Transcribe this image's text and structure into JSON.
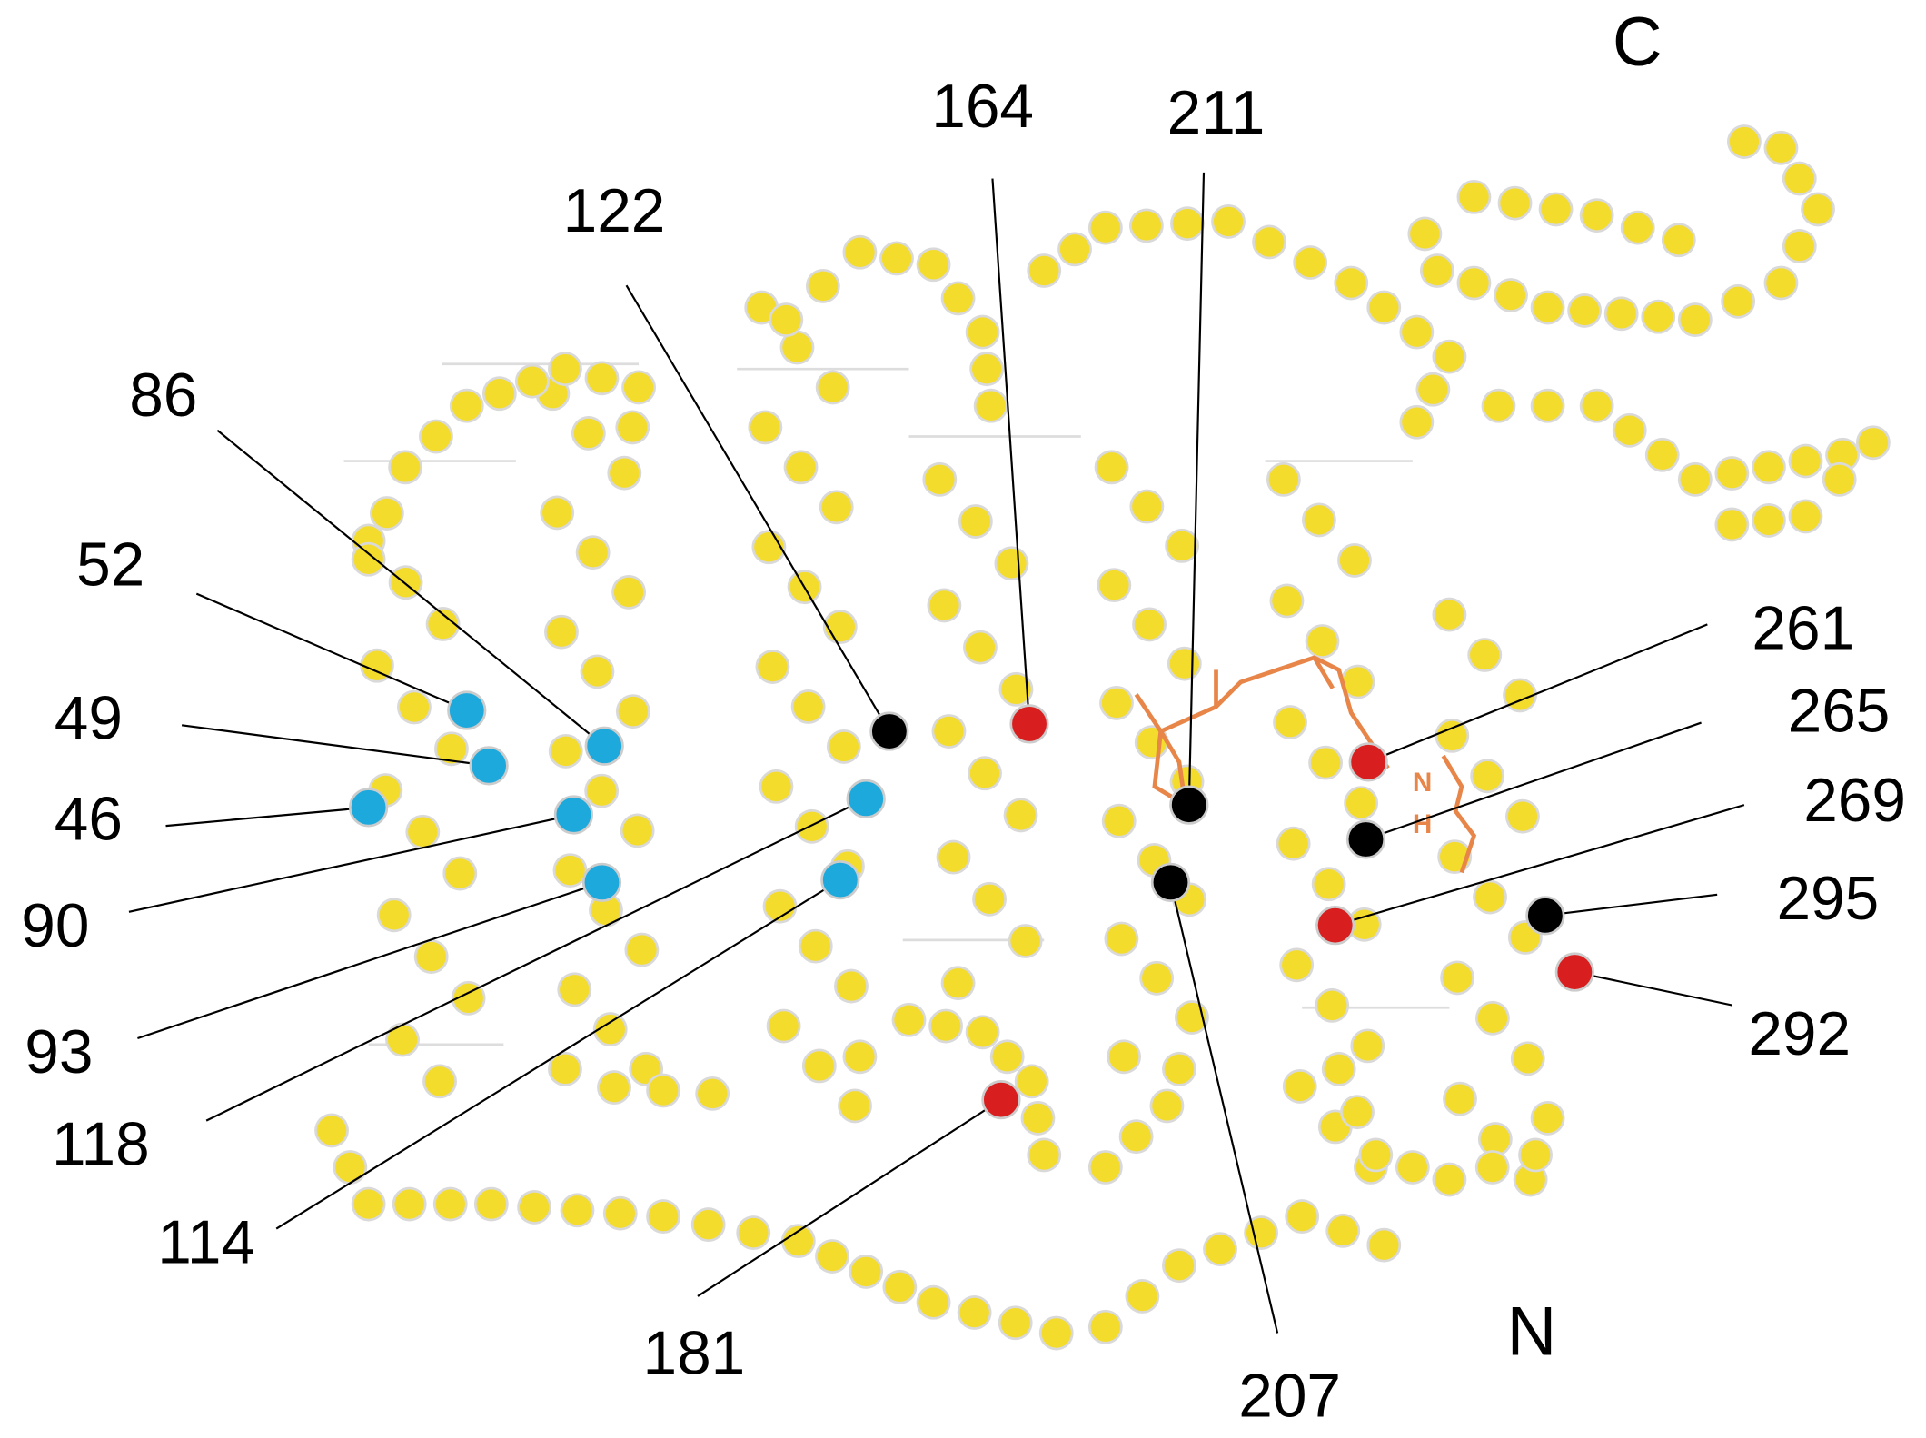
{
  "diagram": {
    "terminals": {
      "c": "C",
      "n": "N"
    },
    "chromophore": {
      "atoms": [
        "N",
        "H"
      ],
      "color": "#e8864a"
    },
    "residues": [
      {
        "label": "46",
        "color": "#1ea9dc"
      },
      {
        "label": "49",
        "color": "#1ea9dc"
      },
      {
        "label": "52",
        "color": "#1ea9dc"
      },
      {
        "label": "86",
        "color": "#1ea9dc"
      },
      {
        "label": "90",
        "color": "#1ea9dc"
      },
      {
        "label": "93",
        "color": "#1ea9dc"
      },
      {
        "label": "114",
        "color": "#1ea9dc"
      },
      {
        "label": "118",
        "color": "#1ea9dc"
      },
      {
        "label": "122",
        "color": "#000000"
      },
      {
        "label": "164",
        "color": "#d81e1e"
      },
      {
        "label": "181",
        "color": "#d81e1e"
      },
      {
        "label": "207",
        "color": "#000000"
      },
      {
        "label": "211",
        "color": "#000000"
      },
      {
        "label": "261",
        "color": "#d81e1e"
      },
      {
        "label": "265",
        "color": "#000000"
      },
      {
        "label": "269",
        "color": "#d81e1e"
      },
      {
        "label": "292",
        "color": "#d81e1e"
      },
      {
        "label": "295",
        "color": "#000000"
      }
    ]
  }
}
